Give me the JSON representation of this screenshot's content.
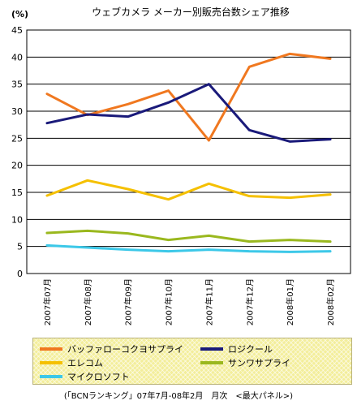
{
  "chart_data": {
    "type": "line",
    "title": "ウェブカメラ メーカー別販売台数シェア推移",
    "ylabel": "(%)",
    "xlabel": "",
    "ylim": [
      0,
      45
    ],
    "yticks": [
      0,
      5,
      10,
      15,
      20,
      25,
      30,
      35,
      40,
      45
    ],
    "grid": "horizontal",
    "legend_position": "bottom",
    "categories": [
      "2007年07月",
      "2007年08月",
      "2007年09月",
      "2007年10月",
      "2007年11月",
      "2007年12月",
      "2008年01月",
      "2008年02月"
    ],
    "series": [
      {
        "name": "バッファローコクヨサプライ",
        "color": "#f07820",
        "values": [
          33.2,
          29.3,
          31.3,
          33.8,
          24.6,
          38.2,
          40.6,
          39.7
        ]
      },
      {
        "name": "ロジクール",
        "color": "#1a1a7a",
        "values": [
          27.8,
          29.4,
          29.0,
          31.6,
          35.0,
          26.5,
          24.4,
          24.8
        ]
      },
      {
        "name": "エレコム",
        "color": "#f5c000",
        "values": [
          14.4,
          17.2,
          15.6,
          13.7,
          16.6,
          14.3,
          14.0,
          14.6
        ]
      },
      {
        "name": "サンワサプライ",
        "color": "#9ab81e",
        "values": [
          7.5,
          7.9,
          7.4,
          6.2,
          7.0,
          5.9,
          6.2,
          5.9
        ]
      },
      {
        "name": "マイクロソフト",
        "color": "#3cc8e8",
        "values": [
          5.2,
          4.8,
          4.4,
          4.1,
          4.4,
          4.1,
          4.0,
          4.1
        ]
      }
    ],
    "source_note": "(「BCNランキング」07年7月-08年2月　月次　<最大パネル>)"
  }
}
